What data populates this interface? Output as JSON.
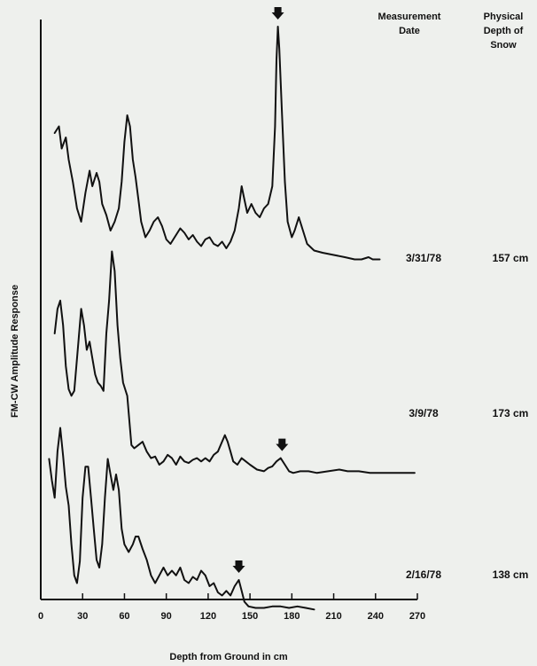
{
  "chart_data": {
    "type": "line",
    "xlabel": "Depth from Ground in cm",
    "ylabel": "FM-CW Amplitude Response",
    "xlim": [
      0,
      270
    ],
    "x_ticks": [
      "0",
      "30",
      "60",
      "90",
      "120",
      "150",
      "180",
      "210",
      "240",
      "270"
    ],
    "headers": {
      "date": [
        "Measurement",
        "Date"
      ],
      "depth": [
        "Physical",
        "Depth of",
        "Snow"
      ]
    },
    "series": [
      {
        "date": "3/31/78",
        "physical_depth": "157 cm",
        "marker_x": 170,
        "points": [
          [
            10,
            0.52
          ],
          [
            13,
            0.55
          ],
          [
            15,
            0.45
          ],
          [
            18,
            0.5
          ],
          [
            20,
            0.4
          ],
          [
            23,
            0.3
          ],
          [
            26,
            0.18
          ],
          [
            29,
            0.12
          ],
          [
            32,
            0.25
          ],
          [
            35,
            0.35
          ],
          [
            37,
            0.28
          ],
          [
            40,
            0.34
          ],
          [
            42,
            0.3
          ],
          [
            44,
            0.2
          ],
          [
            47,
            0.15
          ],
          [
            50,
            0.08
          ],
          [
            53,
            0.12
          ],
          [
            56,
            0.18
          ],
          [
            58,
            0.3
          ],
          [
            60,
            0.48
          ],
          [
            62,
            0.6
          ],
          [
            64,
            0.55
          ],
          [
            66,
            0.4
          ],
          [
            68,
            0.32
          ],
          [
            70,
            0.22
          ],
          [
            72,
            0.12
          ],
          [
            75,
            0.05
          ],
          [
            78,
            0.08
          ],
          [
            81,
            0.12
          ],
          [
            84,
            0.14
          ],
          [
            87,
            0.1
          ],
          [
            90,
            0.04
          ],
          [
            93,
            0.02
          ],
          [
            96,
            0.05
          ],
          [
            100,
            0.09
          ],
          [
            103,
            0.07
          ],
          [
            106,
            0.04
          ],
          [
            109,
            0.06
          ],
          [
            112,
            0.03
          ],
          [
            115,
            0.01
          ],
          [
            118,
            0.04
          ],
          [
            121,
            0.05
          ],
          [
            124,
            0.02
          ],
          [
            127,
            0.01
          ],
          [
            130,
            0.03
          ],
          [
            133,
            0.0
          ],
          [
            136,
            0.03
          ],
          [
            139,
            0.08
          ],
          [
            142,
            0.18
          ],
          [
            144,
            0.28
          ],
          [
            146,
            0.22
          ],
          [
            148,
            0.16
          ],
          [
            151,
            0.2
          ],
          [
            154,
            0.16
          ],
          [
            157,
            0.14
          ],
          [
            160,
            0.18
          ],
          [
            163,
            0.2
          ],
          [
            166,
            0.28
          ],
          [
            168,
            0.55
          ],
          [
            169,
            0.85
          ],
          [
            170,
            1.0
          ],
          [
            171,
            0.9
          ],
          [
            173,
            0.6
          ],
          [
            175,
            0.3
          ],
          [
            177,
            0.12
          ],
          [
            180,
            0.05
          ],
          [
            182,
            0.08
          ],
          [
            185,
            0.14
          ],
          [
            188,
            0.08
          ],
          [
            191,
            0.02
          ],
          [
            196,
            -0.01
          ],
          [
            202,
            -0.02
          ],
          [
            210,
            -0.03
          ],
          [
            218,
            -0.04
          ],
          [
            225,
            -0.05
          ],
          [
            230,
            -0.05
          ],
          [
            235,
            -0.04
          ],
          [
            238,
            -0.05
          ],
          [
            243,
            -0.05
          ]
        ]
      },
      {
        "date": "3/9/78",
        "physical_depth": "173 cm",
        "marker_x": 173,
        "points": [
          [
            10,
            0.4
          ],
          [
            12,
            0.55
          ],
          [
            14,
            0.6
          ],
          [
            16,
            0.45
          ],
          [
            18,
            0.2
          ],
          [
            20,
            0.06
          ],
          [
            22,
            0.02
          ],
          [
            24,
            0.05
          ],
          [
            27,
            0.35
          ],
          [
            29,
            0.55
          ],
          [
            31,
            0.45
          ],
          [
            33,
            0.3
          ],
          [
            35,
            0.35
          ],
          [
            37,
            0.25
          ],
          [
            39,
            0.15
          ],
          [
            41,
            0.1
          ],
          [
            43,
            0.08
          ],
          [
            45,
            0.05
          ],
          [
            47,
            0.4
          ],
          [
            49,
            0.6
          ],
          [
            51,
            0.9
          ],
          [
            53,
            0.78
          ],
          [
            55,
            0.45
          ],
          [
            57,
            0.25
          ],
          [
            59,
            0.1
          ],
          [
            62,
            0.02
          ],
          [
            65,
            -0.28
          ],
          [
            67,
            -0.3
          ],
          [
            70,
            -0.28
          ],
          [
            73,
            -0.26
          ],
          [
            76,
            -0.32
          ],
          [
            79,
            -0.36
          ],
          [
            82,
            -0.35
          ],
          [
            85,
            -0.4
          ],
          [
            88,
            -0.38
          ],
          [
            91,
            -0.34
          ],
          [
            94,
            -0.36
          ],
          [
            97,
            -0.4
          ],
          [
            100,
            -0.35
          ],
          [
            103,
            -0.38
          ],
          [
            106,
            -0.39
          ],
          [
            109,
            -0.37
          ],
          [
            112,
            -0.36
          ],
          [
            115,
            -0.38
          ],
          [
            118,
            -0.36
          ],
          [
            121,
            -0.38
          ],
          [
            124,
            -0.34
          ],
          [
            127,
            -0.32
          ],
          [
            130,
            -0.26
          ],
          [
            132,
            -0.22
          ],
          [
            134,
            -0.26
          ],
          [
            136,
            -0.32
          ],
          [
            138,
            -0.38
          ],
          [
            141,
            -0.4
          ],
          [
            144,
            -0.36
          ],
          [
            147,
            -0.38
          ],
          [
            150,
            -0.4
          ],
          [
            155,
            -0.43
          ],
          [
            160,
            -0.44
          ],
          [
            163,
            -0.42
          ],
          [
            166,
            -0.41
          ],
          [
            169,
            -0.38
          ],
          [
            172,
            -0.36
          ],
          [
            175,
            -0.4
          ],
          [
            178,
            -0.44
          ],
          [
            181,
            -0.45
          ],
          [
            186,
            -0.44
          ],
          [
            192,
            -0.44
          ],
          [
            198,
            -0.45
          ],
          [
            206,
            -0.44
          ],
          [
            214,
            -0.43
          ],
          [
            220,
            -0.44
          ],
          [
            228,
            -0.44
          ],
          [
            236,
            -0.45
          ],
          [
            244,
            -0.45
          ],
          [
            252,
            -0.45
          ],
          [
            260,
            -0.45
          ],
          [
            268,
            -0.45
          ]
        ]
      },
      {
        "date": "2/16/78",
        "physical_depth": "138 cm",
        "marker_x": 142,
        "points": [
          [
            6,
            0.3
          ],
          [
            8,
            0.16
          ],
          [
            10,
            0.05
          ],
          [
            12,
            0.35
          ],
          [
            14,
            0.5
          ],
          [
            16,
            0.32
          ],
          [
            18,
            0.12
          ],
          [
            20,
            0.0
          ],
          [
            22,
            -0.25
          ],
          [
            24,
            -0.45
          ],
          [
            26,
            -0.5
          ],
          [
            28,
            -0.36
          ],
          [
            30,
            0.05
          ],
          [
            32,
            0.25
          ],
          [
            34,
            0.25
          ],
          [
            36,
            0.05
          ],
          [
            38,
            -0.15
          ],
          [
            40,
            -0.35
          ],
          [
            42,
            -0.4
          ],
          [
            44,
            -0.25
          ],
          [
            46,
            0.05
          ],
          [
            48,
            0.3
          ],
          [
            50,
            0.2
          ],
          [
            52,
            0.1
          ],
          [
            54,
            0.2
          ],
          [
            56,
            0.1
          ],
          [
            58,
            -0.15
          ],
          [
            60,
            -0.25
          ],
          [
            63,
            -0.3
          ],
          [
            66,
            -0.25
          ],
          [
            68,
            -0.2
          ],
          [
            70,
            -0.2
          ],
          [
            73,
            -0.28
          ],
          [
            76,
            -0.35
          ],
          [
            79,
            -0.45
          ],
          [
            82,
            -0.5
          ],
          [
            85,
            -0.45
          ],
          [
            88,
            -0.4
          ],
          [
            91,
            -0.45
          ],
          [
            94,
            -0.42
          ],
          [
            97,
            -0.45
          ],
          [
            100,
            -0.4
          ],
          [
            103,
            -0.48
          ],
          [
            106,
            -0.5
          ],
          [
            109,
            -0.46
          ],
          [
            112,
            -0.48
          ],
          [
            115,
            -0.42
          ],
          [
            118,
            -0.45
          ],
          [
            121,
            -0.52
          ],
          [
            124,
            -0.5
          ],
          [
            127,
            -0.56
          ],
          [
            130,
            -0.58
          ],
          [
            133,
            -0.55
          ],
          [
            136,
            -0.58
          ],
          [
            139,
            -0.52
          ],
          [
            142,
            -0.48
          ],
          [
            144,
            -0.55
          ],
          [
            146,
            -0.62
          ],
          [
            149,
            -0.65
          ],
          [
            154,
            -0.66
          ],
          [
            160,
            -0.66
          ],
          [
            166,
            -0.65
          ],
          [
            172,
            -0.65
          ],
          [
            178,
            -0.66
          ],
          [
            184,
            -0.65
          ],
          [
            190,
            -0.66
          ],
          [
            196,
            -0.67
          ]
        ]
      }
    ]
  }
}
